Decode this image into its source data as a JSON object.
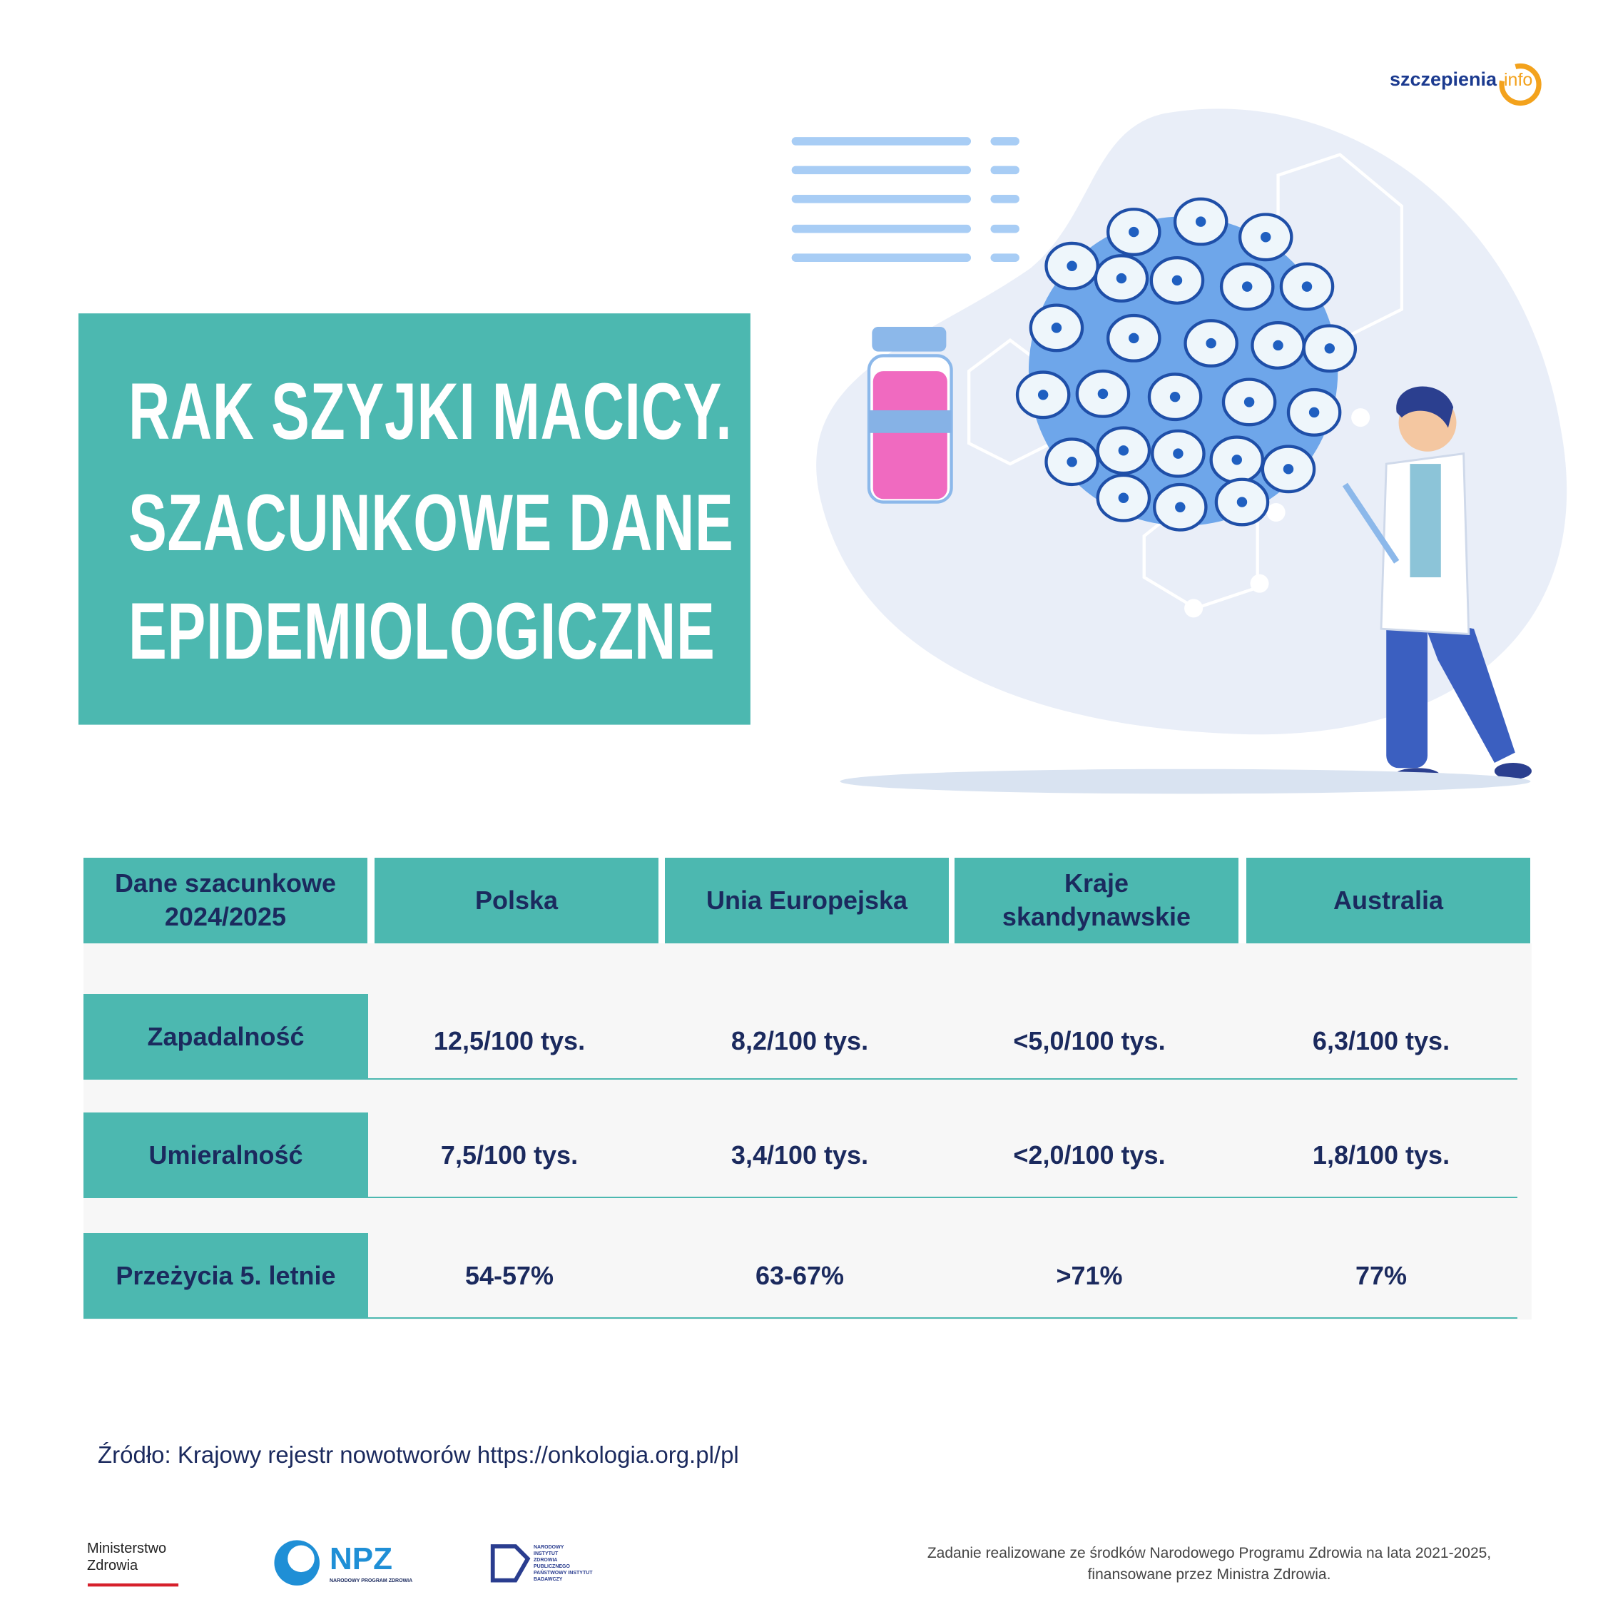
{
  "header": {
    "logo": {
      "main": "szczepienia",
      "accent": "info"
    }
  },
  "title": {
    "lines": [
      "RAK SZYJKI MACICY.",
      "SZACUNKOWE DANE",
      "EPIDEMIOLOGICZNE"
    ]
  },
  "table": {
    "columns": [
      [
        "Dane szacunkowe",
        "2024/2025"
      ],
      [
        "Polska"
      ],
      [
        "Unia Europejska"
      ],
      [
        "Kraje",
        "skandynawskie"
      ],
      [
        "Australia"
      ]
    ],
    "rows": [
      [
        "Zapadalność",
        "12,5/100 tys.",
        "8,2/100 tys.",
        "<5,0/100 tys.",
        "6,3/100 tys."
      ],
      [
        "Umieralność",
        "7,5/100 tys.",
        "3,4/100 tys.",
        "<2,0/100 tys.",
        "1,8/100 tys."
      ],
      [
        "Przeżycia 5. letnie",
        "54-57%",
        "63-67%",
        ">71%",
        "77%"
      ]
    ]
  },
  "source": "Źródło: Krajowy rejestr nowotworów https://onkologia.org.pl/pl",
  "footer": {
    "ministry": [
      "Ministerstwo",
      "Zdrowia"
    ],
    "npz": {
      "name": "NPZ",
      "sub": "NARODOWY PROGRAM ZDROWIA"
    },
    "nizp": [
      "NARODOWY",
      "INSTYTUT",
      "ZDROWIA",
      "PUBLICZNEGO",
      "PAŃSTWOWY INSTYTUT",
      "BADAWCZY"
    ],
    "note": [
      "Zadanie realizowane ze środków Narodowego Programu Zdrowia na lata 2021-2025,",
      "finansowane przez Ministra Zdrowia."
    ]
  }
}
